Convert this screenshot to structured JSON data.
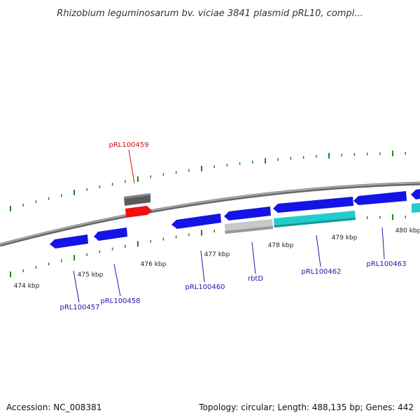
{
  "title": "Rhizobium leguminosarum bv. viciae 3841 plasmid pRL10, compl...",
  "footer": {
    "accession": "Accession: NC_008381",
    "topology": "Topology: circular; Length: 488,135 bp; Genes: 442"
  },
  "scale_labels": [
    "474 kbp",
    "475 kbp",
    "476 kbp",
    "477 kbp",
    "478 kbp",
    "479 kbp",
    "480 kbp"
  ],
  "gene_labels": {
    "g459": "pRL100459",
    "g457": "pRL100457",
    "g458": "pRL100458",
    "g460": "pRL100460",
    "rbtD": "rbtD",
    "g462": "pRL100462",
    "g463": "pRL100463"
  },
  "colors": {
    "gene_blue": "#1414e6",
    "gene_cyan": "#22cccc",
    "gene_red": "#ee1111",
    "gene_gray_dark": "#666666",
    "gene_gray_light": "#cccccc",
    "tick_green": "#1a8a1a",
    "backbone": "#888888",
    "label_red": "#cc1111",
    "label_blue": "#1a1aa8"
  }
}
